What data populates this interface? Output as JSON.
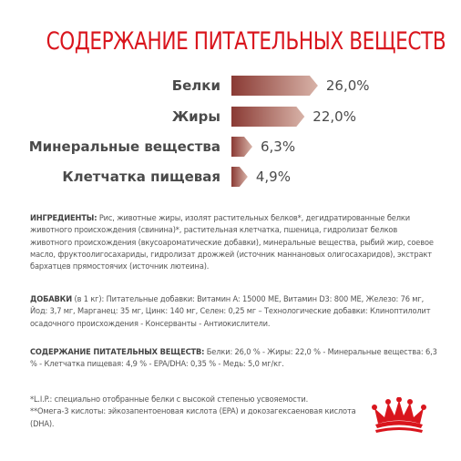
{
  "title": "СОДЕРЖАНИЕ ПИТАТЕЛЬНЫХ ВЕЩЕСТВ",
  "chart_data": {
    "type": "bar",
    "categories": [
      "Белки",
      "Жиры",
      "Минеральные вещества",
      "Клетчатка пищевая"
    ],
    "values": [
      26.0,
      22.0,
      6.3,
      4.9
    ],
    "value_labels": [
      "26,0%",
      "22,0%",
      "6,3%",
      "4,9%"
    ],
    "unit": "%",
    "title": "СОДЕРЖАНИЕ ПИТАТЕЛЬНЫХ ВЕЩЕСТВ",
    "xlabel": "",
    "ylabel": "",
    "orientation": "horizontal",
    "bar_colors": [
      "#8a3a34",
      "#d8b3a8"
    ]
  },
  "ingredients": {
    "heading": "ИНГРЕДИЕНТЫ:",
    "text": " Рис, животные жиры, изолят растительных белков*, дегидратированные белки животного происхождения (свинина)*, растительная клетчатка, пшеница, гидролизат белков животного происхождения (вкусоароматические добавки), минеральные вещества, рыбий жир, соевое масло, фруктоолигосахариды, гидролизат дрожжей (источник маннановых олигосахаридов), экстракт бархатцев прямостоячих (источник лютеина)."
  },
  "additives": {
    "heading": "ДОБАВКИ",
    "text": " (в 1 кг): Питательные добавки: Витамин A: 15000 ME, Витамин D3: 800 ME, Железо: 76 мг, Йод: 3,7 мг, Марганец: 35 мг, Цинк: 140 мг, Селен: 0,25 мг – Технологические добавки: Клиноптилолит осадочного происхождения - Консерванты - Антиокислители."
  },
  "nutrients": {
    "heading": "СОДЕРЖАНИЕ ПИТАТЕЛЬНЫХ ВЕЩЕСТВ:",
    "text": " Белки: 26,0 % - Жиры: 22,0 % - Минеральные вещества: 6,3 % - Клетчатка пищевая: 4,9 % - EPA/DHA: 0,35 % - Медь: 5,0 мг/кг."
  },
  "notes": {
    "line1": "*L.I.P.: специально отобранные белки с высокой степенью усвояемости.",
    "line2": "**Омега-3 кислоты: эйкозапентоеновая кислота (EPA) и докозагексаеновая кислота (DHA)."
  },
  "logo": {
    "icon": "crown-logo-icon",
    "color": "#d9151d"
  }
}
